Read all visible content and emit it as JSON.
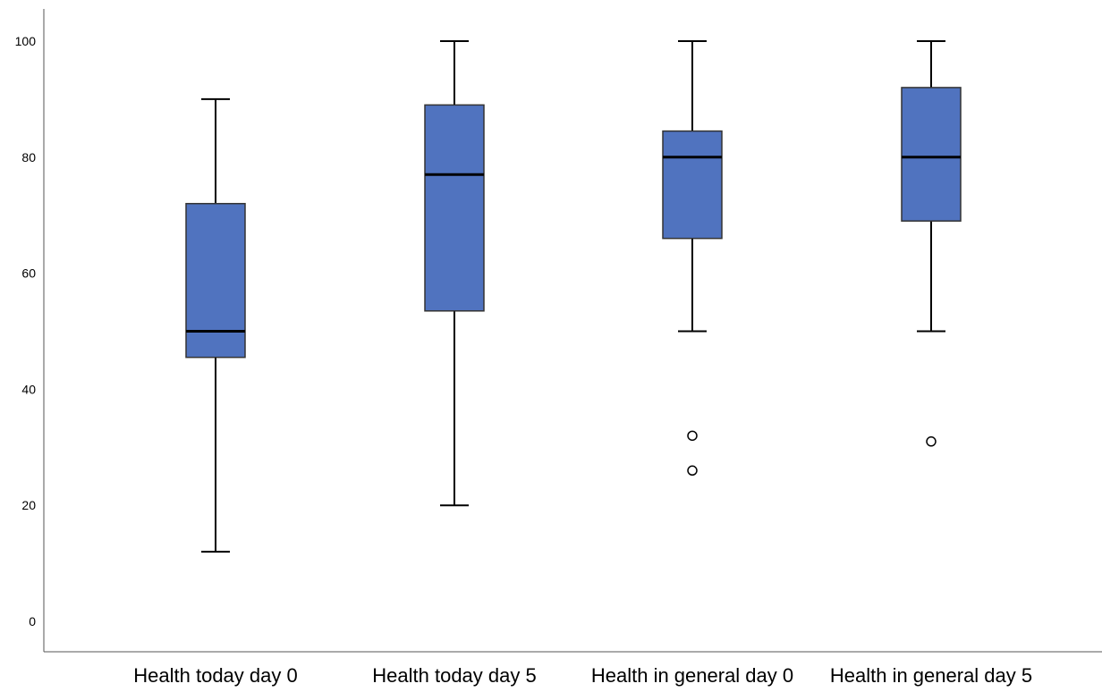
{
  "chart_data": {
    "type": "boxplot",
    "title": "",
    "xlabel": "",
    "ylabel": "",
    "ylim": [
      0,
      100
    ],
    "yticks": [
      0,
      20,
      40,
      60,
      80,
      100
    ],
    "grid": false,
    "legend": "none",
    "box_color": "#5073bf",
    "outline_color": "#333333",
    "median_color": "#000000",
    "categories": [
      "Health today day 0",
      "Health today day 5",
      "Health in general day 0",
      "Health in general day 5"
    ],
    "boxes": [
      {
        "whisker_low": 12,
        "q1": 45.5,
        "median": 50,
        "q3": 72,
        "whisker_high": 90,
        "outliers": []
      },
      {
        "whisker_low": 20,
        "q1": 53.5,
        "median": 77,
        "q3": 89,
        "whisker_high": 100,
        "outliers": []
      },
      {
        "whisker_low": 50,
        "q1": 66,
        "median": 80,
        "q3": 84.5,
        "whisker_high": 100,
        "outliers": [
          32,
          26
        ]
      },
      {
        "whisker_low": 50,
        "q1": 69,
        "median": 80,
        "q3": 92,
        "whisker_high": 100,
        "outliers": [
          31
        ]
      }
    ]
  }
}
